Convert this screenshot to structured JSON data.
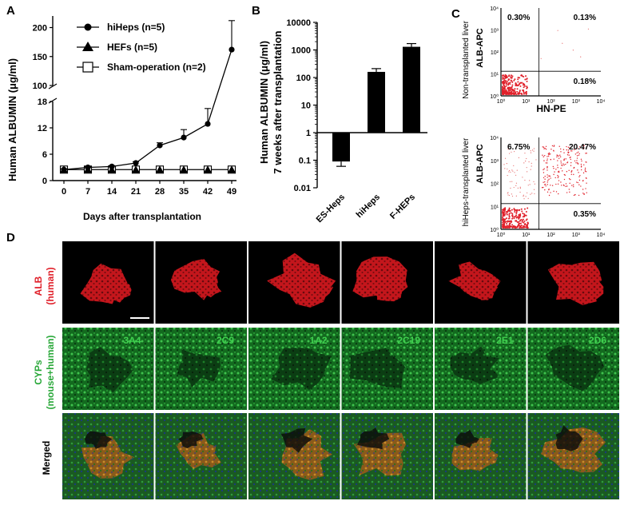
{
  "panel_labels": {
    "a": "A",
    "b": "B",
    "c": "C",
    "d": "D"
  },
  "colors": {
    "alb_red": "#e0202a",
    "cyp_green": "#2aa83a",
    "line": "#000000",
    "tissue_red": "#c4161c",
    "tissue_green": "#1f8a2b"
  },
  "chart_data": [
    {
      "type": "line",
      "panel": "A",
      "ylabel": "Human ALBUMIN (μg/ml)",
      "xlabel": "Days after transplantation",
      "x": [
        0,
        7,
        14,
        21,
        28,
        35,
        42,
        49
      ],
      "x_ticks": [
        "0",
        "7",
        "14",
        "21",
        "28",
        "35",
        "42",
        "49"
      ],
      "y_ticks_lower": [
        "0",
        "6",
        "12",
        "18"
      ],
      "y_ticks_upper": [
        "100",
        "150",
        "200"
      ],
      "ylim_lower": [
        0,
        18
      ],
      "ylim_upper": [
        100,
        220
      ],
      "axis_break": true,
      "legend_position": "top-right",
      "series": [
        {
          "name": "hiHeps (n=5)",
          "marker": "circle-filled",
          "values": [
            2.5,
            3.0,
            3.2,
            4.0,
            8.0,
            9.8,
            12.9,
            162
          ],
          "errors": [
            0.2,
            0.2,
            0.2,
            0.3,
            0.6,
            1.8,
            3.5,
            50
          ]
        },
        {
          "name": "HEFs (n=5)",
          "marker": "triangle-filled",
          "values": [
            2.5,
            2.5,
            2.5,
            2.5,
            2.5,
            2.5,
            2.5,
            2.5
          ]
        },
        {
          "name": "Sham-operation (n=2)",
          "marker": "square-open",
          "values": [
            2.5,
            2.5,
            2.5,
            2.5,
            2.5,
            2.5,
            2.5,
            2.5
          ]
        }
      ]
    },
    {
      "type": "bar",
      "panel": "B",
      "ylabel_lines": [
        "Human ALBUMIN (μg/ml)",
        "7 weeks after transplantation"
      ],
      "scale": "log",
      "ylim": [
        0.01,
        10000
      ],
      "y_ticks": [
        "0.01",
        "0.1",
        "1",
        "10",
        "100",
        "1000",
        "10000"
      ],
      "categories": [
        "ES-Heps",
        "hiHeps",
        "F-HEPs"
      ],
      "values": [
        0.09,
        160,
        1300
      ],
      "errors": [
        0.03,
        50,
        400
      ],
      "baseline": 1
    },
    {
      "type": "scatter",
      "panel": "C",
      "plots": [
        {
          "title": "Non-transplanted liver",
          "xlabel": "HN-PE",
          "ylabel": "ALB-APC",
          "quadrants": {
            "upper_left": "0.30%",
            "upper_right": "0.13%",
            "lower_right": "0.18%"
          },
          "x_ticks": [
            "10⁰",
            "10¹",
            "10²",
            "10³",
            "10⁴"
          ],
          "y_ticks": [
            "10⁰",
            "10¹",
            "10²",
            "10³",
            "10⁴"
          ]
        },
        {
          "title": "hiHeps-transplanted liver",
          "xlabel": "",
          "ylabel": "ALB-APC",
          "quadrants": {
            "upper_left": "6.75%",
            "upper_right": "20.47%",
            "lower_right": "0.35%"
          },
          "x_ticks": [
            "10⁰",
            "10¹",
            "10²",
            "10³",
            "10⁴"
          ],
          "y_ticks": [
            "10⁰",
            "10¹",
            "10²",
            "10³",
            "10⁴"
          ]
        }
      ]
    }
  ],
  "panel_d": {
    "row_labels": [
      {
        "main": "ALB",
        "sub": "(human)",
        "color": "#e0202a"
      },
      {
        "main": "CYPs",
        "sub": "(mouse+human)",
        "color": "#2aa83a"
      },
      {
        "main": "Merged",
        "sub": "",
        "color": "#000000"
      }
    ],
    "cyp_labels": [
      "3A4",
      "2C9",
      "1A2",
      "2C19",
      "2E1",
      "2D6"
    ]
  }
}
